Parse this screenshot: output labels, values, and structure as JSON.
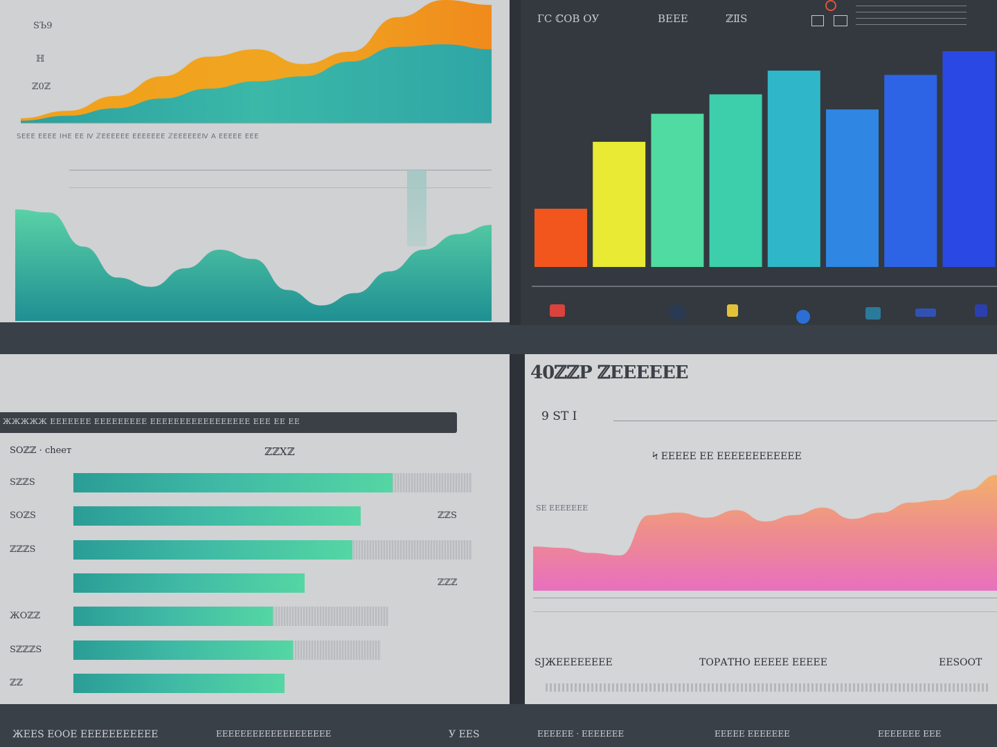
{
  "panel_top_left": {
    "labels": [
      "ЅЪ9",
      "ℍ",
      "ℤ0ℤ"
    ],
    "caption": "ЅЕЕЕ ЕЕЕЕ ІНЕ ЕЕ Ⅳ ℤЕЕЕЕЕЕ ЕЕЕЕЕЕЕ ℤЕЕЕЕЕЕⅣ А ЕЕЕЕЕ ЕЕЕ"
  },
  "panel_top_right": {
    "header_items": [
      "ГС ℂОВ ОУ",
      "ВЕЕЕ",
      "ℤⅡЅ"
    ],
    "bar_tops": [
      "",
      "",
      "",
      "",
      "",
      ""
    ]
  },
  "panel_bottom_left": {
    "header_bar": "ЖЖЖЖЖ ЕЕЕЕЕЕЕ ЕЕЕЕЕЕЕЕЕ ЕЕЕЕЕЕЕЕЕЕЕЕЕЕЕЕЕ ЕЕЕ ЕЕ ЕЕ",
    "sub_left": "ЅОℤℤ · сһеет",
    "sub_center": "ℤℤХℤ",
    "row_labels": [
      "ЅℤℤЅ",
      "ЅОℤЅ",
      "ℤℤℤЅ",
      "",
      "ЖОℤℤ",
      "ЅℤℤℤЅ",
      "ℤℤ"
    ],
    "row_values": [
      "",
      "ℤℤЅ",
      "",
      "ℤℤℤ",
      "",
      "",
      ""
    ]
  },
  "panel_bottom_right": {
    "title": "40ℤℤР ℤЕЕЕЕЕЕ",
    "subtitle": "9 ЅТ І",
    "chart_caption": "Ϟ ЕЕЕЕЕ ЕЕ ЕЕЕЕЕЕЕЕЕЕЕЕ",
    "side_label": "ЅЕ ЕЕЕЕЕЕЕ",
    "footer_cols": [
      "ЅЈЖЕЕЕЕЕЕЕЕ",
      "ТОРАТНО ЕЕЕЕЕ ЕЕЕЕЕ",
      "ЕЕЅООТ"
    ]
  },
  "footer": {
    "items": [
      "ЖЕЕЅ ЕООЕ ЕЕЕЕЕЕЕЕЕЕЕ",
      "ЕЕЕЕЕЕЕЕЕЕЕЕЕЕЕЕЕЕЕ",
      "У ЕЕЅ",
      "ЕЕЕЕЕЕ · ЕЕЕЕЕЕЕ",
      "ЕЕЕЕЕ ЕЕЕЕЕЕЕ",
      "ЕЕЕЕЕЕЕ ЕЕЕ"
    ]
  },
  "colors": {
    "teal": "#2a9d96",
    "mint": "#55d6a4",
    "orange": "#f08a1c",
    "yellow": "#e8e83a",
    "pink": "#e873b0",
    "blue": "#2b52e0"
  },
  "chart_data": [
    {
      "type": "area",
      "series": [
        {
          "values": [
            4,
            10,
            22,
            38,
            54,
            60,
            48,
            58,
            86,
            100,
            96
          ]
        },
        {
          "values": [
            2,
            6,
            12,
            20,
            28,
            34,
            38,
            50,
            62,
            64,
            60
          ]
        }
      ],
      "x": [
        0,
        1,
        2,
        3,
        4,
        5,
        6,
        7,
        8,
        9,
        10
      ],
      "ylim": [
        0,
        100
      ]
    },
    {
      "type": "area",
      "series": [
        {
          "values": [
            72,
            70,
            48,
            28,
            22,
            34,
            46,
            40,
            20,
            10,
            18,
            32,
            46,
            56,
            62
          ]
        }
      ],
      "x": [
        0,
        1,
        2,
        3,
        4,
        5,
        6,
        7,
        8,
        9,
        10,
        11,
        12,
        13,
        14
      ],
      "ylim": [
        0,
        100
      ]
    },
    {
      "type": "bar",
      "categories": [
        "1",
        "2",
        "3",
        "4",
        "5",
        "6",
        "7",
        "8"
      ],
      "values": [
        27,
        58,
        71,
        80,
        91,
        73,
        89,
        100
      ],
      "colors": [
        "#f2561d",
        "#e8ea34",
        "#4fdba1",
        "#3dcfac",
        "#2fb7c9",
        "#2f86e3",
        "#2d64e6",
        "#2a48e3"
      ],
      "ylim": [
        0,
        100
      ]
    },
    {
      "type": "bar",
      "orientation": "horizontal",
      "categories": [
        "r1",
        "r2",
        "r3",
        "r4",
        "r5",
        "r6",
        "r7"
      ],
      "series": [
        {
          "values": [
            80,
            72,
            70,
            58,
            50,
            55,
            53
          ]
        },
        {
          "values": [
            100,
            72,
            100,
            58,
            79,
            77,
            53
          ]
        }
      ],
      "ylim": [
        0,
        100
      ]
    },
    {
      "type": "area",
      "series": [
        {
          "values": [
            35,
            34,
            30,
            28,
            60,
            62,
            58,
            64,
            55,
            60,
            66,
            57,
            62,
            70,
            72,
            80,
            92
          ]
        }
      ],
      "x": [
        0,
        1,
        2,
        3,
        4,
        5,
        6,
        7,
        8,
        9,
        10,
        11,
        12,
        13,
        14,
        15,
        16
      ],
      "ylim": [
        0,
        100
      ]
    }
  ]
}
